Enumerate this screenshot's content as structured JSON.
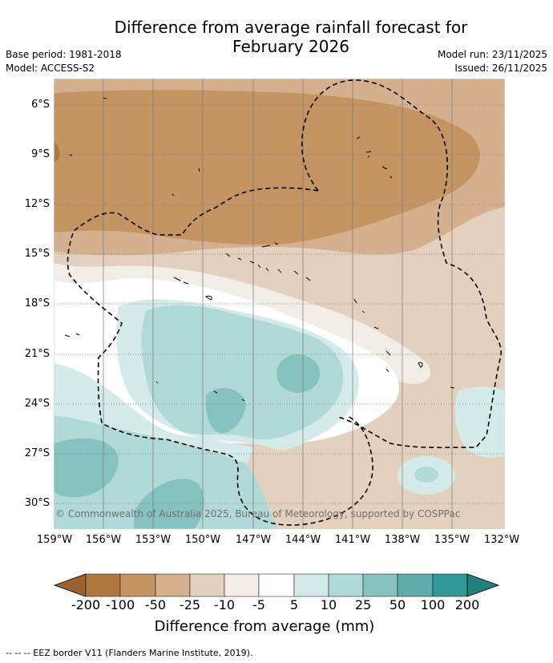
{
  "title_line1": "Difference from average rainfall forecast for",
  "title_line2": "February 2026",
  "meta": {
    "base_period": "Base period: 1981-2018",
    "model": "Model: ACCESS-S2",
    "model_run": "Model run: 23/11/2025",
    "issued": "Issued: 26/11/2025"
  },
  "lat_labels": [
    "6°S",
    "9°S",
    "12°S",
    "15°S",
    "18°S",
    "21°S",
    "24°S",
    "27°S",
    "30°S"
  ],
  "lon_labels": [
    "159°W",
    "156°W",
    "153°W",
    "150°W",
    "147°W",
    "144°W",
    "141°W",
    "138°W",
    "135°W",
    "132°W"
  ],
  "copyright": "© Commonwealth of Australia 2025, Bureau of Meteorology, supported by COSPPac",
  "colorbar": {
    "labels": [
      "-200",
      "-100",
      "-50",
      "-25",
      "-10",
      "-5",
      "5",
      "10",
      "25",
      "50",
      "100",
      "200"
    ],
    "colors": [
      "#9e6230",
      "#b07841",
      "#c49463",
      "#d4b08e",
      "#e4d0be",
      "#f2ede6",
      "#ffffff",
      "#d5ebe9",
      "#b0d9d7",
      "#86c2c0",
      "#5eacab",
      "#339998",
      "#227f7e"
    ],
    "title": "Difference from average (mm)"
  },
  "footnote": "--  --  -- EEZ border V11 (Flanders Marine Institute, 2019)."
}
